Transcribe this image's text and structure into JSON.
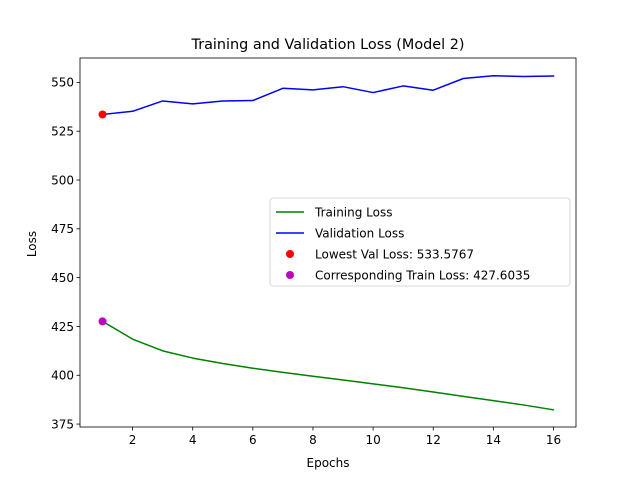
{
  "chart_data": {
    "type": "line",
    "title": "Training and Validation Loss (Model 2)",
    "xlabel": "Epochs",
    "ylabel": "Loss",
    "xlim": [
      0.25,
      16.75
    ],
    "ylim": [
      373.5,
      562.5
    ],
    "xticks": [
      2,
      4,
      6,
      8,
      10,
      12,
      14,
      16
    ],
    "yticks": [
      375,
      400,
      425,
      450,
      475,
      500,
      525,
      550
    ],
    "grid": false,
    "legend_position": "center-right",
    "x": [
      1,
      2,
      3,
      4,
      5,
      6,
      7,
      8,
      9,
      10,
      11,
      12,
      13,
      14,
      15,
      16
    ],
    "series": [
      {
        "name": "Training Loss",
        "color": "#008000",
        "values": [
          427.6035,
          418.5,
          412.5,
          408.8,
          406.0,
          403.6,
          401.5,
          399.5,
          397.6,
          395.6,
          393.6,
          391.4,
          389.2,
          387.0,
          384.8,
          382.3
        ]
      },
      {
        "name": "Validation Loss",
        "color": "#0000ff",
        "values": [
          533.5767,
          535.2,
          540.5,
          539.0,
          540.5,
          540.7,
          547.0,
          546.2,
          547.8,
          544.8,
          548.2,
          546.0,
          552.0,
          553.4,
          553.0,
          553.3
        ]
      }
    ],
    "markers": [
      {
        "name": "Lowest Val Loss: 533.5767",
        "color": "#ff0000",
        "x": 1,
        "y": 533.5767
      },
      {
        "name": "Corresponding Train Loss: 427.6035",
        "color": "#bf00bf",
        "x": 1,
        "y": 427.6035
      }
    ]
  }
}
